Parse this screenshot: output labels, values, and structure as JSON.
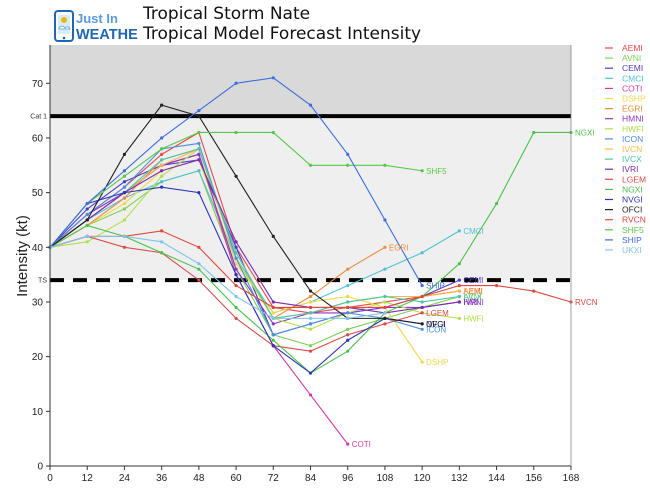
{
  "header": {
    "logo_line1": "Just In",
    "logo_line2": "WEATHER",
    "title": "Tropical Storm Nate",
    "subtitle": "Tropical Model Forecast Intensity"
  },
  "chart_data": {
    "type": "line",
    "ylabel": "Intensity (kt)",
    "xlabel": "",
    "xlim": [
      0,
      168
    ],
    "ylim": [
      0,
      77
    ],
    "xticks": [
      0,
      12,
      24,
      36,
      48,
      60,
      72,
      84,
      96,
      108,
      120,
      132,
      144,
      156,
      168
    ],
    "yticks": [
      0,
      10,
      20,
      30,
      40,
      50,
      60,
      70
    ],
    "thresholds": [
      {
        "label": "Cat 1",
        "value": 64,
        "style": "solid"
      },
      {
        "label": "TS",
        "value": 34,
        "style": "dashed"
      }
    ],
    "bands": [
      {
        "from": 64,
        "to": 77,
        "color": "#d9d9d9"
      },
      {
        "from": 34,
        "to": 64,
        "color": "#efefef"
      }
    ],
    "legend_position": "right",
    "series": [
      {
        "name": "AEMI",
        "color": "#e8474b",
        "x": [
          0,
          12,
          24,
          36,
          48,
          60,
          72,
          84,
          96,
          108,
          120,
          132
        ],
        "y": [
          40,
          46,
          51,
          57,
          61,
          40,
          29,
          28,
          29,
          30,
          31,
          32
        ],
        "end_label": true
      },
      {
        "name": "AVNI",
        "color": "#7fcf4f",
        "x": [
          0,
          12,
          24,
          36,
          48,
          60,
          72,
          84,
          96,
          108,
          120,
          132
        ],
        "y": [
          40,
          44,
          47,
          52,
          54,
          36,
          24,
          22,
          25,
          27,
          29,
          31
        ],
        "end_label": true
      },
      {
        "name": "CEMI",
        "color": "#4a3cc9",
        "x": [
          0,
          12,
          24,
          36,
          48,
          60,
          72,
          84,
          96,
          108,
          120,
          132
        ],
        "y": [
          40,
          47,
          52,
          55,
          56,
          40,
          24,
          26,
          28,
          29,
          31,
          34
        ],
        "end_label": true
      },
      {
        "name": "CMCI",
        "color": "#4fc3d4",
        "x": [
          0,
          12,
          24,
          36,
          48,
          60,
          72,
          84,
          96,
          108,
          120,
          132
        ],
        "y": [
          40,
          45,
          49,
          52,
          54,
          38,
          28,
          30,
          33,
          36,
          39,
          43
        ],
        "end_label": true
      },
      {
        "name": "COTI",
        "color": "#d63aa8",
        "x": [
          0,
          12,
          24,
          36,
          48,
          60,
          72,
          84,
          96
        ],
        "y": [
          40,
          45,
          50,
          55,
          57,
          35,
          22,
          13,
          4
        ],
        "end_label": true
      },
      {
        "name": "DSHP",
        "color": "#f0d64a",
        "x": [
          0,
          12,
          24,
          36,
          48,
          60,
          72,
          84,
          96,
          108,
          120
        ],
        "y": [
          40,
          44,
          48,
          54,
          56,
          37,
          28,
          30,
          31,
          29,
          19
        ],
        "end_label": true
      },
      {
        "name": "EGRI",
        "color": "#ee8a3a",
        "x": [
          0,
          12,
          24,
          36,
          48,
          60,
          72,
          84,
          96,
          108
        ],
        "y": [
          40,
          44,
          49,
          56,
          58,
          38,
          27,
          31,
          36,
          40
        ],
        "end_label": true
      },
      {
        "name": "HMNI",
        "color": "#8e36c6",
        "x": [
          0,
          12,
          24,
          36,
          48,
          60,
          72,
          84,
          96,
          108,
          120,
          132
        ],
        "y": [
          40,
          46,
          50,
          55,
          57,
          36,
          26,
          28,
          28,
          29,
          29,
          30
        ],
        "end_label": true
      },
      {
        "name": "HWFI",
        "color": "#b3e04a",
        "x": [
          0,
          12,
          24,
          36,
          48,
          60,
          72,
          84,
          96,
          108,
          120,
          132
        ],
        "y": [
          40,
          41,
          45,
          53,
          58,
          38,
          27,
          25,
          28,
          30,
          28,
          27
        ],
        "end_label": true
      },
      {
        "name": "ICON",
        "color": "#4a90e2",
        "x": [
          0,
          12,
          24,
          36,
          48,
          60,
          72,
          84,
          96,
          108,
          120
        ],
        "y": [
          40,
          46,
          51,
          58,
          59,
          38,
          24,
          26,
          28,
          27,
          25
        ],
        "end_label": true
      },
      {
        "name": "IVCN",
        "color": "#f5b942",
        "x": [
          0,
          12,
          24,
          36,
          48,
          60,
          72,
          84,
          96,
          108,
          120,
          132
        ],
        "y": [
          40,
          45,
          50,
          55,
          58,
          39,
          27,
          28,
          30,
          31,
          31,
          32
        ],
        "end_label": true
      },
      {
        "name": "IVCX",
        "color": "#49c6a6",
        "x": [
          0,
          12,
          24,
          36,
          48,
          60,
          72,
          84,
          96,
          108,
          120,
          132
        ],
        "y": [
          40,
          45,
          50,
          56,
          58,
          39,
          27,
          28,
          30,
          31,
          30,
          31
        ],
        "end_label": true
      },
      {
        "name": "IVRI",
        "color": "#7b2fb0",
        "x": [
          0,
          12,
          24,
          36,
          48,
          60,
          72,
          84,
          96,
          108,
          120,
          132
        ],
        "y": [
          40,
          45,
          50,
          54,
          56,
          41,
          30,
          29,
          29,
          28,
          29,
          30
        ],
        "end_label": true
      },
      {
        "name": "LGEM",
        "color": "#d94b4b",
        "x": [
          0,
          12,
          24,
          36,
          48,
          60,
          72,
          84,
          96,
          108,
          120
        ],
        "y": [
          40,
          42,
          40,
          39,
          34,
          27,
          22,
          21,
          24,
          26,
          28
        ],
        "end_label": true
      },
      {
        "name": "NGXI",
        "color": "#4cc24c",
        "x": [
          0,
          12,
          24,
          36,
          48,
          60,
          72,
          84,
          96,
          108,
          120,
          132,
          144,
          156,
          168
        ],
        "y": [
          40,
          44,
          42,
          39,
          36,
          29,
          23,
          17,
          21,
          28,
          31,
          37,
          48,
          61,
          61
        ],
        "end_label": true
      },
      {
        "name": "NVGI",
        "color": "#2d36b8",
        "x": [
          0,
          12,
          24,
          36,
          48,
          60,
          72,
          84,
          96,
          108,
          120
        ],
        "y": [
          40,
          48,
          50,
          51,
          50,
          35,
          22,
          17,
          23,
          27,
          26
        ],
        "end_label": true
      },
      {
        "name": "OFCI",
        "color": "#222222",
        "x": [
          0,
          12,
          24,
          36,
          48,
          60,
          72,
          84,
          96,
          108,
          120
        ],
        "y": [
          40,
          45,
          57,
          66,
          64,
          53,
          42,
          32,
          27,
          27,
          26
        ],
        "end_label": true
      },
      {
        "name": "RVCN",
        "color": "#e0463c",
        "x": [
          0,
          12,
          24,
          36,
          48,
          60,
          72,
          84,
          96,
          108,
          120,
          132,
          144,
          156,
          168
        ],
        "y": [
          40,
          42,
          42,
          43,
          40,
          33,
          29,
          29,
          29,
          29,
          31,
          33,
          33,
          32,
          30
        ],
        "end_label": true
      },
      {
        "name": "SHF5",
        "color": "#57c94a",
        "x": [
          0,
          12,
          24,
          36,
          48,
          60,
          72,
          84,
          96,
          108,
          120
        ],
        "y": [
          40,
          48,
          53,
          58,
          61,
          61,
          61,
          55,
          55,
          55,
          54
        ],
        "end_label": true
      },
      {
        "name": "SHIP",
        "color": "#3d6ee0",
        "x": [
          0,
          12,
          24,
          36,
          48,
          60,
          72,
          84,
          96,
          108,
          120
        ],
        "y": [
          40,
          48,
          54,
          60,
          65,
          70,
          71,
          66,
          57,
          45,
          33
        ],
        "end_label": true
      },
      {
        "name": "UKXI",
        "color": "#7fc4e8",
        "x": [
          0,
          12,
          24,
          36,
          48,
          60,
          72,
          84,
          96,
          108
        ],
        "y": [
          40,
          42,
          42,
          41,
          37,
          31,
          27,
          27,
          27,
          28
        ],
        "end_label": false
      }
    ]
  }
}
